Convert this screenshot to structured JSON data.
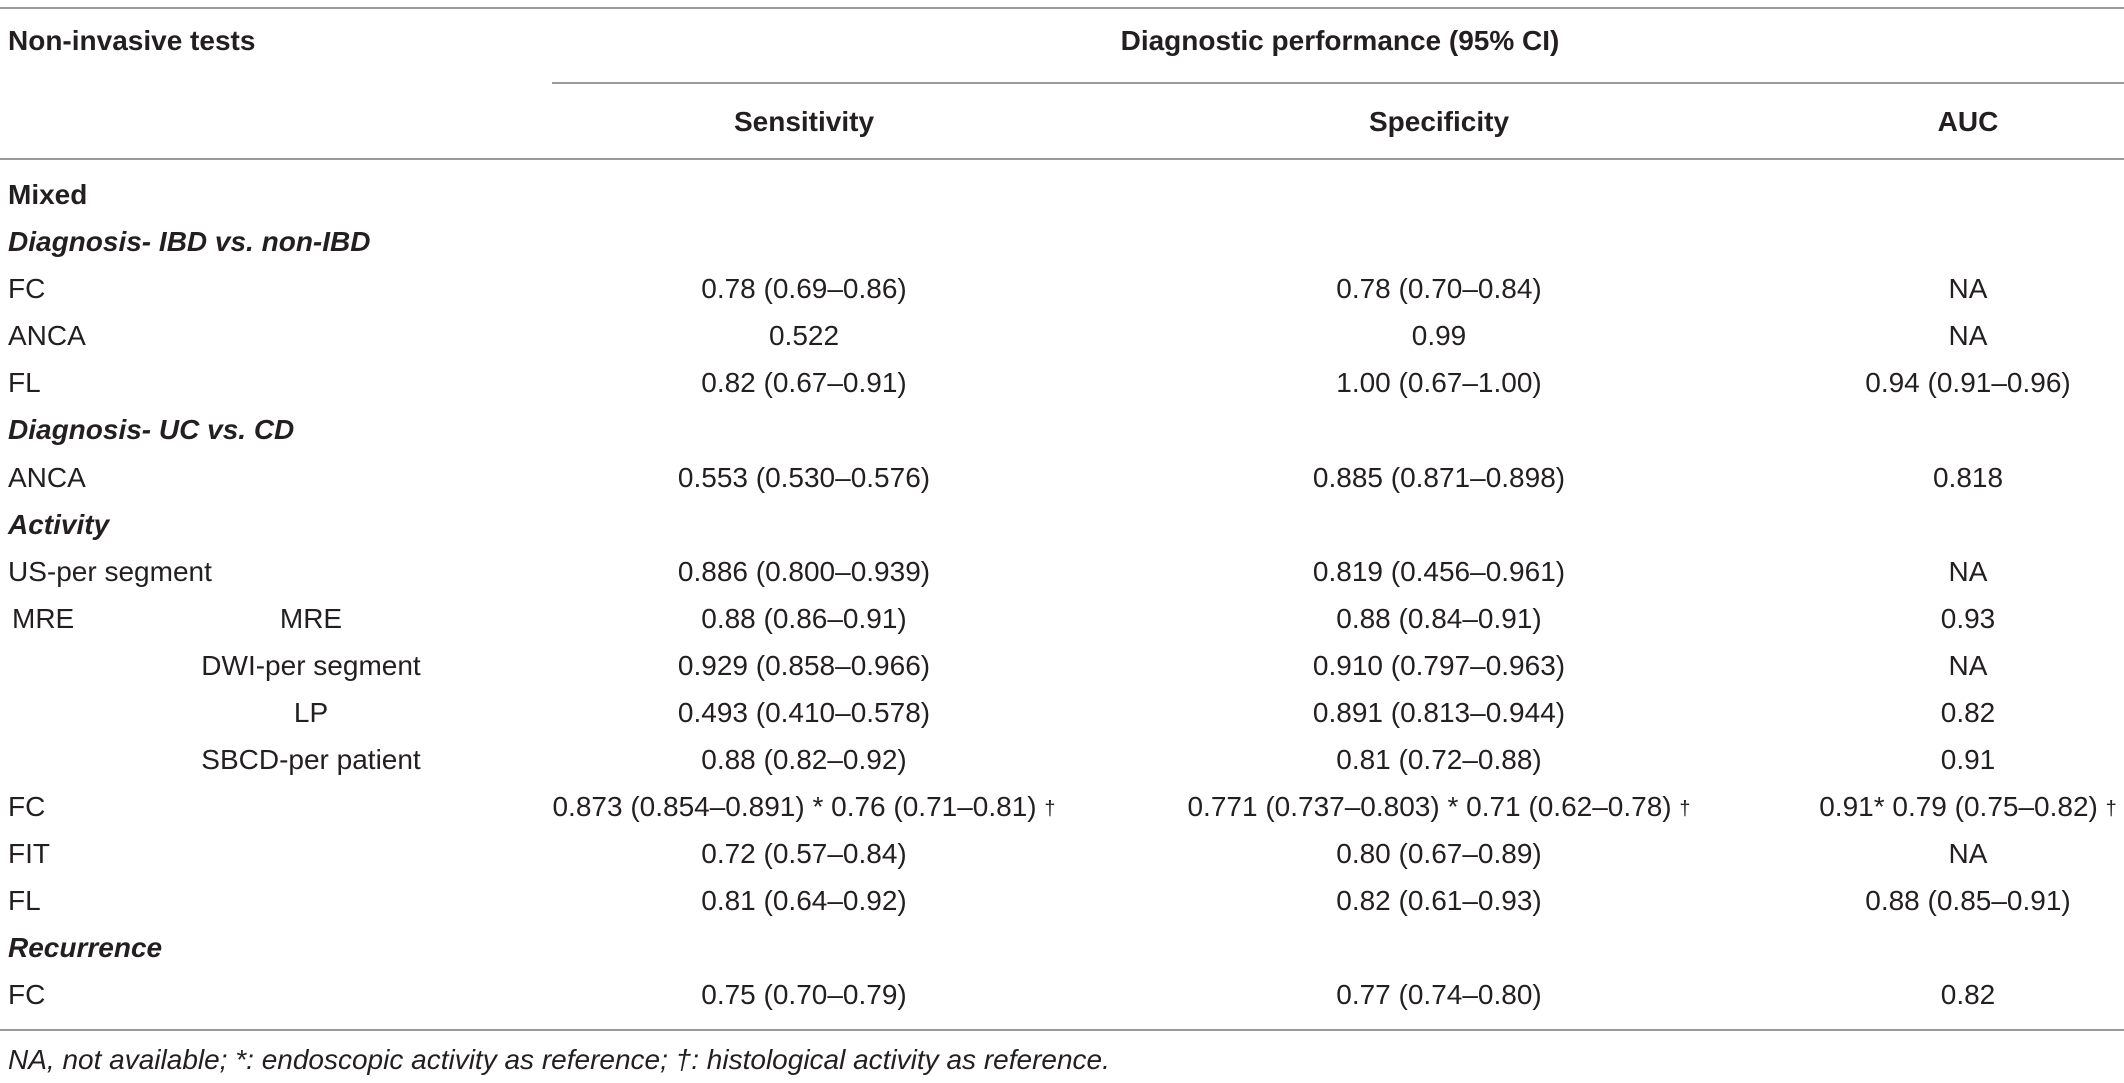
{
  "header": {
    "col_tests": "Non-invasive tests",
    "group_title": "Diagnostic performance (95% CI)",
    "col_sensitivity": "Sensitivity",
    "col_specificity": "Specificity",
    "col_auc": "AUC"
  },
  "sections": {
    "mixed": "Mixed",
    "ibd": "Diagnosis- IBD vs. non-IBD",
    "ucvcd": "Diagnosis- UC vs. CD",
    "activity": "Activity",
    "recurrence": "Recurrence"
  },
  "rows": {
    "r1": {
      "test": "FC",
      "sens": "0.78 (0.69–0.86)",
      "spec": "0.78 (0.70–0.84)",
      "auc": "NA"
    },
    "r2": {
      "test": "ANCA",
      "sens": "0.522",
      "spec": "0.99",
      "auc": "NA"
    },
    "r3": {
      "test": "FL",
      "sens": "0.82 (0.67–0.91)",
      "spec": "1.00 (0.67–1.00)",
      "auc": "0.94 (0.91–0.96)"
    },
    "r4": {
      "test": "ANCA",
      "sens": "0.553 (0.530–0.576)",
      "spec": "0.885 (0.871–0.898)",
      "auc": "0.818"
    },
    "r5": {
      "test": "US-per segment",
      "sens": "0.886 (0.800–0.939)",
      "spec": "0.819 (0.456–0.961)",
      "auc": "NA"
    },
    "r6": {
      "test": "MRE",
      "sub": "MRE",
      "sens": "0.88 (0.86–0.91)",
      "spec": "0.88 (0.84–0.91)",
      "auc": "0.93"
    },
    "r7": {
      "sub": "DWI-per segment",
      "sens": "0.929 (0.858–0.966)",
      "spec": "0.910 (0.797–0.963)",
      "auc": "NA"
    },
    "r8": {
      "sub": "LP",
      "sens": "0.493 (0.410–0.578)",
      "spec": "0.891 (0.813–0.944)",
      "auc": "0.82"
    },
    "r9": {
      "sub": "SBCD-per patient",
      "sens": "0.88 (0.82–0.92)",
      "spec": "0.81 (0.72–0.88)",
      "auc": "0.91"
    },
    "r10": {
      "test": "FC",
      "sens": "0.873 (0.854–0.891) * 0.76 (0.71–0.81)",
      "spec": "0.771 (0.737–0.803) * 0.71 (0.62–0.78)",
      "auc": "0.91* 0.79 (0.75–0.82)",
      "dagger": "†"
    },
    "r11": {
      "test": "FIT",
      "sens": "0.72 (0.57–0.84)",
      "spec": "0.80 (0.67–0.89)",
      "auc": "NA"
    },
    "r12": {
      "test": "FL",
      "sens": "0.81 (0.64–0.92)",
      "spec": "0.82 (0.61–0.93)",
      "auc": "0.88 (0.85–0.91)"
    },
    "r13": {
      "test": "FC",
      "sens": "0.75 (0.70–0.79)",
      "spec": "0.77 (0.74–0.80)",
      "auc": "0.82"
    }
  },
  "footnote": "NA, not available; *: endoscopic activity as reference; †: histological activity as reference."
}
